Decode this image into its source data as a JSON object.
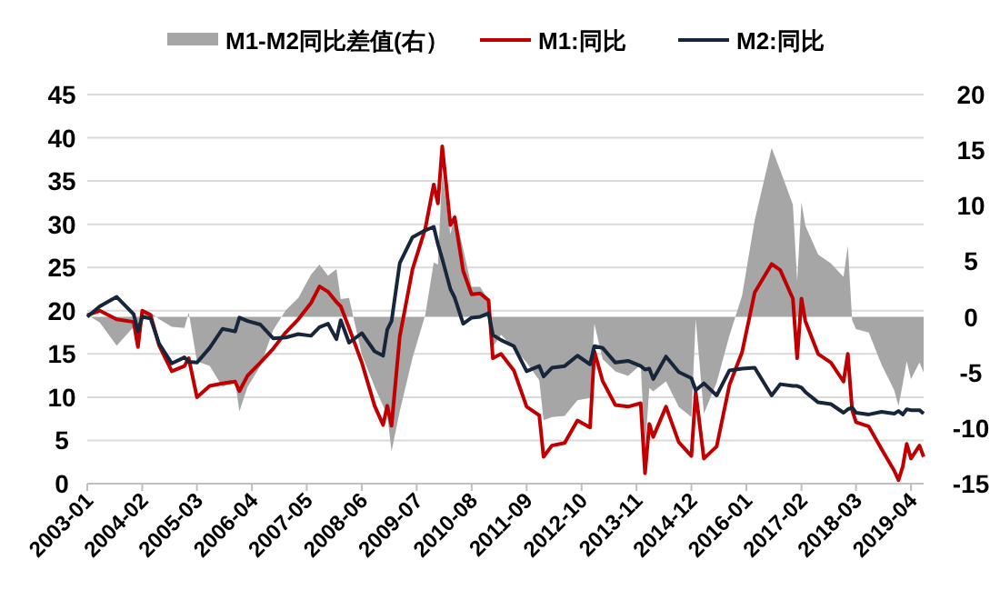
{
  "chart_data": {
    "type": "line",
    "legend": "top",
    "grid": "y",
    "x": [
      "2003-01",
      "2003-04",
      "2003-08",
      "2003-12",
      "2004-01",
      "2004-02",
      "2004-04",
      "2004-06",
      "2004-09",
      "2004-12",
      "2005-01",
      "2005-03",
      "2005-06",
      "2005-09",
      "2005-12",
      "2006-01",
      "2006-03",
      "2006-06",
      "2006-09",
      "2006-12",
      "2007-03",
      "2007-06",
      "2007-08",
      "2007-10",
      "2007-12",
      "2008-01",
      "2008-03",
      "2008-06",
      "2008-09",
      "2008-11",
      "2008-12",
      "2009-01",
      "2009-03",
      "2009-06",
      "2009-09",
      "2009-11",
      "2009-12",
      "2010-01",
      "2010-03",
      "2010-04",
      "2010-06",
      "2010-08",
      "2010-10",
      "2010-12",
      "2011-01",
      "2011-03",
      "2011-06",
      "2011-09",
      "2011-12",
      "2012-01",
      "2012-03",
      "2012-06",
      "2012-09",
      "2012-12",
      "2013-01",
      "2013-03",
      "2013-06",
      "2013-09",
      "2013-12",
      "2014-01",
      "2014-02",
      "2014-03",
      "2014-06",
      "2014-09",
      "2014-12",
      "2015-01",
      "2015-03",
      "2015-06",
      "2015-09",
      "2015-12",
      "2016-03",
      "2016-07",
      "2016-09",
      "2016-12",
      "2017-01",
      "2017-02",
      "2017-03",
      "2017-06",
      "2017-09",
      "2017-12",
      "2018-01",
      "2018-02",
      "2018-03",
      "2018-06",
      "2018-09",
      "2018-12",
      "2019-01",
      "2019-02",
      "2019-03",
      "2019-04",
      "2019-06",
      "2019-07"
    ],
    "xlim": [
      "2003-01",
      "2019-07"
    ],
    "xticks": [
      "2003-01",
      "2004-02",
      "2005-03",
      "2006-04",
      "2007-05",
      "2008-06",
      "2009-07",
      "2010-08",
      "2011-09",
      "2012-10",
      "2013-11",
      "2014-12",
      "2016-01",
      "2017-02",
      "2018-03",
      "2019-04"
    ],
    "ylim": [
      0,
      45
    ],
    "yticks": [
      0,
      5,
      10,
      15,
      20,
      25,
      30,
      35,
      40,
      45
    ],
    "y2lim": [
      -15,
      20
    ],
    "y2ticks": [
      -15,
      -10,
      -5,
      0,
      5,
      10,
      15,
      20
    ],
    "series": [
      {
        "name": "M1-M2同比差值(右）",
        "type": "area",
        "axis": "y2",
        "color": "#a6a6a6",
        "values": [
          0.2,
          -0.5,
          -2.6,
          -0.9,
          -1.8,
          0.7,
          0.4,
          -0.2,
          -0.9,
          -1.0,
          0.4,
          -4.0,
          -4.4,
          -6.3,
          -5.8,
          -8.5,
          -6.3,
          -4.4,
          -1.2,
          0.6,
          1.7,
          3.8,
          4.7,
          3.7,
          4.3,
          1.6,
          1.7,
          -3.4,
          -6.3,
          -8.0,
          -8.8,
          -12.1,
          -8.5,
          -3.7,
          0.2,
          4.9,
          4.7,
          13.0,
          7.4,
          9.3,
          6.1,
          2.7,
          2.7,
          1.5,
          -2.7,
          -1.6,
          -2.8,
          -4.1,
          -5.7,
          -9.3,
          -9.0,
          -8.9,
          -7.5,
          -7.3,
          -0.6,
          -3.8,
          -4.9,
          -5.3,
          -4.3,
          -12.0,
          -6.4,
          -6.7,
          -5.8,
          -8.1,
          -9.0,
          -0.2,
          -8.7,
          -5.9,
          -1.7,
          1.9,
          8.7,
          15.2,
          13.2,
          10.1,
          3.2,
          10.3,
          8.2,
          5.6,
          4.8,
          3.6,
          6.4,
          -0.3,
          -1.1,
          -1.4,
          -4.3,
          -6.6,
          -8.0,
          -6.0,
          -4.0,
          -5.6,
          -4.1,
          -5.0
        ]
      },
      {
        "name": "M1:同比",
        "color": "#c00000",
        "values": [
          19.5,
          20.0,
          19.0,
          18.7,
          15.8,
          20.0,
          19.5,
          16.0,
          13.0,
          13.6,
          14.5,
          10.0,
          11.3,
          11.6,
          11.8,
          10.7,
          12.5,
          14.0,
          15.6,
          17.5,
          19.0,
          20.9,
          22.8,
          22.2,
          21.0,
          20.5,
          18.0,
          14.0,
          9.0,
          6.8,
          9.0,
          6.7,
          17.0,
          24.8,
          29.5,
          34.6,
          32.4,
          39.0,
          29.9,
          30.8,
          24.6,
          21.9,
          22.0,
          21.2,
          14.5,
          15.0,
          13.1,
          8.9,
          7.9,
          3.1,
          4.4,
          4.7,
          7.3,
          6.5,
          15.3,
          11.9,
          9.1,
          8.9,
          9.3,
          1.2,
          6.9,
          5.4,
          8.9,
          4.8,
          3.2,
          10.6,
          2.9,
          4.3,
          11.4,
          15.2,
          22.1,
          25.4,
          24.7,
          21.4,
          14.5,
          21.4,
          18.8,
          15.0,
          14.0,
          11.8,
          15.0,
          8.5,
          7.1,
          6.6,
          4.0,
          1.5,
          0.4,
          2.0,
          4.6,
          2.9,
          4.4,
          3.1
        ]
      },
      {
        "name": "M2:同比",
        "color": "#17263a",
        "values": [
          19.3,
          20.5,
          21.6,
          19.6,
          17.6,
          19.3,
          19.1,
          16.2,
          13.9,
          14.6,
          14.1,
          14.0,
          15.7,
          17.9,
          17.6,
          19.2,
          18.8,
          18.4,
          16.8,
          16.9,
          17.3,
          17.1,
          18.1,
          18.5,
          16.7,
          18.9,
          16.3,
          17.4,
          15.3,
          14.8,
          17.8,
          18.8,
          25.5,
          28.5,
          29.3,
          29.7,
          27.7,
          26.0,
          22.5,
          21.5,
          18.5,
          19.2,
          19.3,
          19.7,
          17.2,
          16.6,
          15.9,
          13.0,
          13.6,
          12.4,
          13.4,
          13.6,
          14.8,
          13.8,
          15.9,
          15.7,
          14.0,
          14.2,
          13.6,
          13.2,
          13.3,
          12.1,
          14.7,
          12.9,
          12.2,
          10.8,
          11.6,
          10.2,
          13.1,
          13.3,
          13.4,
          10.2,
          11.5,
          11.3,
          11.3,
          11.1,
          10.6,
          9.4,
          9.2,
          8.2,
          8.6,
          8.8,
          8.2,
          8.0,
          8.3,
          8.1,
          8.4,
          8.0,
          8.6,
          8.5,
          8.5,
          8.1
        ]
      }
    ]
  }
}
